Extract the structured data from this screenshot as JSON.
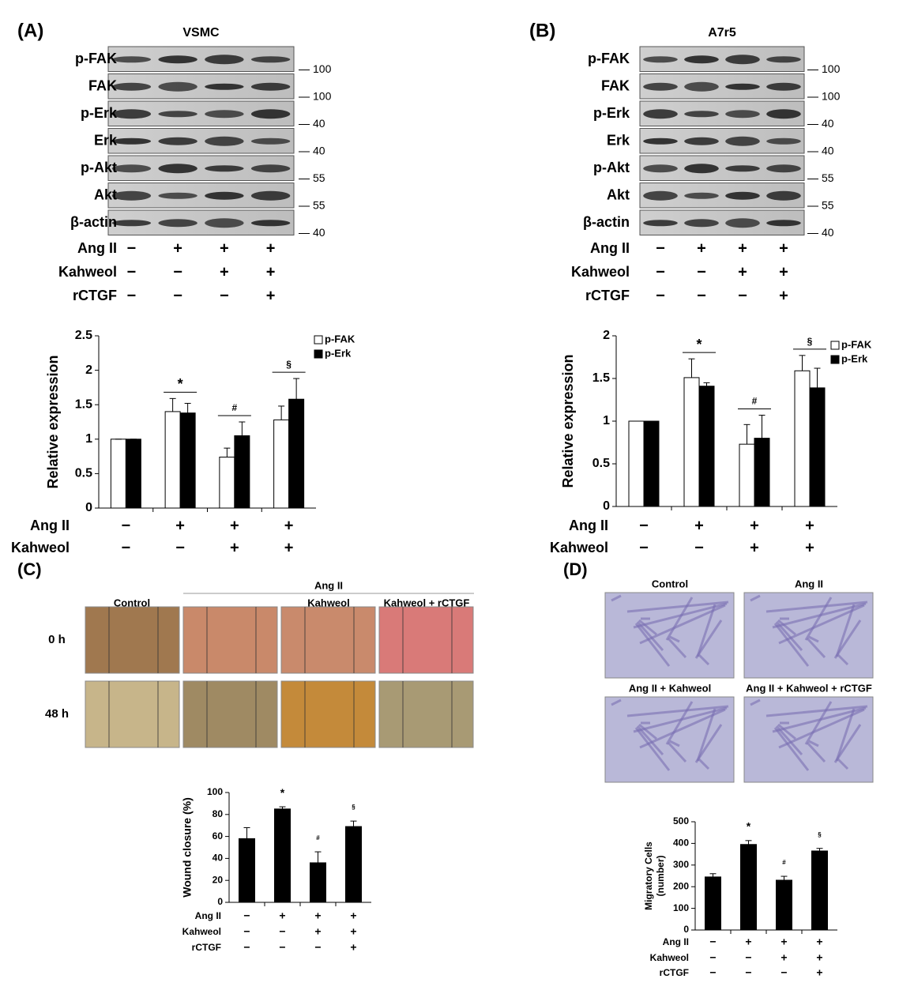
{
  "panel_labels": [
    "(A)",
    "(B)",
    "(C)",
    "(D)"
  ],
  "blots": [
    {
      "title": "VSMC",
      "proteins": [
        "p-FAK",
        "FAK",
        "p-Erk",
        "Erk",
        "p-Akt",
        "Akt",
        "β-actin"
      ],
      "markers": [
        100,
        100,
        40,
        40,
        55,
        55,
        40
      ],
      "conditions": [
        {
          "name": "Ang II",
          "signs": [
            "−",
            "+",
            "+",
            "+"
          ]
        },
        {
          "name": "Kahweol",
          "signs": [
            "−",
            "−",
            "+",
            "+"
          ]
        },
        {
          "name": "rCTGF",
          "signs": [
            "−",
            "−",
            "−",
            "+"
          ]
        }
      ]
    },
    {
      "title": "A7r5",
      "proteins": [
        "p-FAK",
        "FAK",
        "p-Erk",
        "Erk",
        "p-Akt",
        "Akt",
        "β-actin"
      ],
      "markers": [
        100,
        100,
        40,
        40,
        55,
        55,
        40
      ],
      "conditions": [
        {
          "name": "Ang II",
          "signs": [
            "−",
            "+",
            "+",
            "+"
          ]
        },
        {
          "name": "Kahweol",
          "signs": [
            "−",
            "−",
            "+",
            "+"
          ]
        },
        {
          "name": "rCTGF",
          "signs": [
            "−",
            "−",
            "−",
            "+"
          ]
        }
      ]
    }
  ],
  "chart_data": [
    {
      "type": "bar",
      "ylabel": "Relative expression",
      "ylim": [
        0,
        2.5
      ],
      "yticks": [
        0,
        0.5,
        1,
        1.5,
        2,
        2.5
      ],
      "series": [
        {
          "name": "p-FAK",
          "color": "#ffffff",
          "values": [
            1.0,
            1.4,
            0.74,
            1.28
          ],
          "errors": [
            0,
            0.19,
            0.13,
            0.2
          ]
        },
        {
          "name": "p-Erk",
          "color": "#000000",
          "values": [
            1.0,
            1.38,
            1.05,
            1.58
          ],
          "errors": [
            0,
            0.14,
            0.2,
            0.3
          ]
        }
      ],
      "significance": [
        null,
        "*",
        "#",
        "§"
      ],
      "conditions": [
        {
          "name": "Ang II",
          "signs": [
            "−",
            "+",
            "+",
            "+"
          ]
        },
        {
          "name": "Kahweol",
          "signs": [
            "−",
            "−",
            "+",
            "+"
          ]
        }
      ]
    },
    {
      "type": "bar",
      "ylabel": "Relative expression",
      "ylim": [
        0,
        2
      ],
      "yticks": [
        0,
        0.5,
        1,
        1.5,
        2
      ],
      "series": [
        {
          "name": "p-FAK",
          "color": "#ffffff",
          "values": [
            1.0,
            1.51,
            0.73,
            1.59
          ],
          "errors": [
            0,
            0.22,
            0.23,
            0.18
          ]
        },
        {
          "name": "p-Erk",
          "color": "#000000",
          "values": [
            1.0,
            1.41,
            0.8,
            1.39
          ],
          "errors": [
            0,
            0.04,
            0.27,
            0.23
          ]
        }
      ],
      "significance": [
        null,
        "*",
        "#",
        "§"
      ],
      "conditions": [
        {
          "name": "Ang II",
          "signs": [
            "−",
            "+",
            "+",
            "+"
          ]
        },
        {
          "name": "Kahweol",
          "signs": [
            "−",
            "−",
            "+",
            "+"
          ]
        }
      ]
    },
    {
      "type": "bar",
      "ylabel": "Wound closure (%)",
      "ylim": [
        0,
        100
      ],
      "yticks": [
        0,
        20,
        40,
        60,
        80,
        100
      ],
      "color": "#000000",
      "values": [
        58,
        85,
        36,
        69
      ],
      "errors": [
        10,
        2,
        10,
        5
      ],
      "significance": [
        null,
        "*",
        "#",
        "§"
      ],
      "conditions": [
        {
          "name": "Ang II",
          "signs": [
            "−",
            "+",
            "+",
            "+"
          ]
        },
        {
          "name": "Kahweol",
          "signs": [
            "−",
            "−",
            "+",
            "+"
          ]
        },
        {
          "name": "rCTGF",
          "signs": [
            "−",
            "−",
            "−",
            "+"
          ]
        }
      ]
    },
    {
      "type": "bar",
      "ylabel": [
        "Migratory Cells",
        "(number)"
      ],
      "ylim": [
        0,
        500
      ],
      "yticks": [
        0,
        100,
        200,
        300,
        400,
        500
      ],
      "color": "#000000",
      "values": [
        245,
        395,
        230,
        365
      ],
      "errors": [
        15,
        18,
        18,
        12
      ],
      "significance": [
        null,
        "*",
        "#",
        "§"
      ],
      "conditions": [
        {
          "name": "Ang II",
          "signs": [
            "−",
            "+",
            "+",
            "+"
          ]
        },
        {
          "name": "Kahweol",
          "signs": [
            "−",
            "−",
            "+",
            "+"
          ]
        },
        {
          "name": "rCTGF",
          "signs": [
            "−",
            "−",
            "−",
            "+"
          ]
        }
      ]
    }
  ],
  "wound": {
    "group": "Ang II",
    "columns": [
      "Control",
      "Kahweol",
      "Kahweol + rCTGF"
    ],
    "rows": [
      "0 h",
      "48 h"
    ]
  },
  "transwell": {
    "labels": [
      "Control",
      "Ang II",
      "Ang II + Kahweol",
      "Ang II + Kahweol + rCTGF"
    ]
  }
}
